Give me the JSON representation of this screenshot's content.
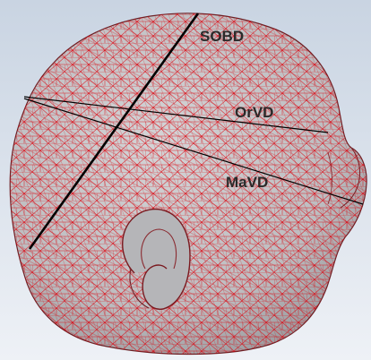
{
  "labels": {
    "sobd": "SOBD",
    "orvd": "OrVD",
    "mavd": "MaVD"
  },
  "colors": {
    "background_top": "#c9d4e2",
    "background_bottom": "#e8edf4",
    "surface": "#c2c2c4",
    "mesh": "#e0000a",
    "measure_line": "#000000"
  }
}
